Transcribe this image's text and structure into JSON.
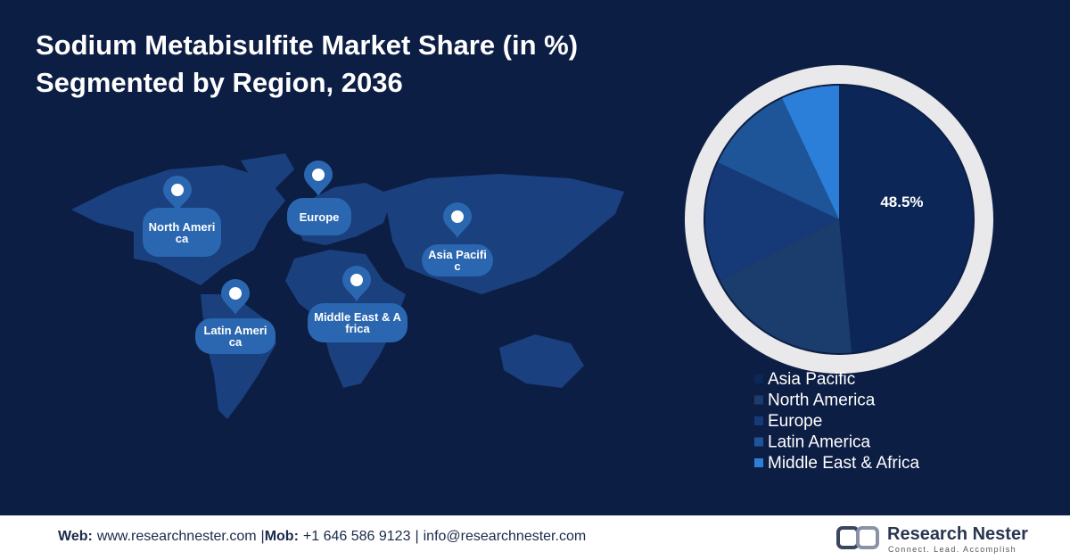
{
  "chart_data": {
    "type": "pie",
    "title": [
      "Sodium Metabisulfite Market Share (in %)",
      "Segmented by Region, 2036"
    ],
    "categories": [
      "Asia Pacific",
      "North America",
      "Europe",
      "Latin America",
      "Middle East & Africa"
    ],
    "values": [
      48.5,
      19,
      14.5,
      11,
      7
    ],
    "value_labels": [
      "48.5%",
      null,
      null,
      null,
      null
    ],
    "colors": [
      "#0c2658",
      "#1a3d6d",
      "#163a78",
      "#1e5598",
      "#2b7fd9"
    ],
    "legend": "right"
  },
  "map_labels": [
    "North America",
    "Europe",
    "Asia Pacific",
    "Latin America",
    "Middle East & Africa"
  ],
  "footer": {
    "items": [
      {
        "label": "Web:",
        "text": "www.researchnester.com"
      },
      {
        "label": "Mob:",
        "text": "+1 646 586 9123"
      },
      {
        "label": null,
        "text": "info@researchnester.com"
      }
    ],
    "separator": "|"
  },
  "logo": {
    "name": "Research Nester",
    "tagline": "Connect. Lead. Accomplish"
  }
}
